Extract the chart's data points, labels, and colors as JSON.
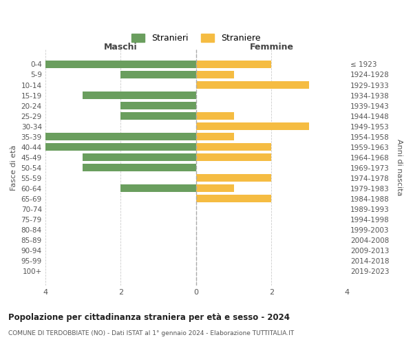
{
  "age_groups": [
    "0-4",
    "5-9",
    "10-14",
    "15-19",
    "20-24",
    "25-29",
    "30-34",
    "35-39",
    "40-44",
    "45-49",
    "50-54",
    "55-59",
    "60-64",
    "65-69",
    "70-74",
    "75-79",
    "80-84",
    "85-89",
    "90-94",
    "95-99",
    "100+"
  ],
  "birth_years": [
    "2019-2023",
    "2014-2018",
    "2009-2013",
    "2004-2008",
    "1999-2003",
    "1994-1998",
    "1989-1993",
    "1984-1988",
    "1979-1983",
    "1974-1978",
    "1969-1973",
    "1964-1968",
    "1959-1963",
    "1954-1958",
    "1949-1953",
    "1944-1948",
    "1939-1943",
    "1934-1938",
    "1929-1933",
    "1924-1928",
    "≤ 1923"
  ],
  "maschi": [
    4,
    2,
    0,
    3,
    2,
    2,
    0,
    4,
    4,
    3,
    3,
    0,
    2,
    0,
    0,
    0,
    0,
    0,
    0,
    0,
    0
  ],
  "femmine": [
    2,
    1,
    3,
    0,
    0,
    1,
    3,
    1,
    2,
    2,
    0,
    2,
    1,
    2,
    0,
    0,
    0,
    0,
    0,
    0,
    0
  ],
  "color_maschi": "#6a9e5e",
  "color_femmine": "#f5bc42",
  "title": "Popolazione per cittadinanza straniera per età e sesso - 2024",
  "subtitle": "COMUNE DI TERDOBBIATE (NO) - Dati ISTAT al 1° gennaio 2024 - Elaborazione TUTTITALIA.IT",
  "legend_maschi": "Stranieri",
  "legend_femmine": "Straniere",
  "xlabel_left": "Maschi",
  "xlabel_right": "Femmine",
  "ylabel_left": "Fasce di età",
  "ylabel_right": "Anni di nascita",
  "xlim": 4,
  "bg_color": "#ffffff",
  "grid_color": "#cccccc",
  "bar_height": 0.75
}
